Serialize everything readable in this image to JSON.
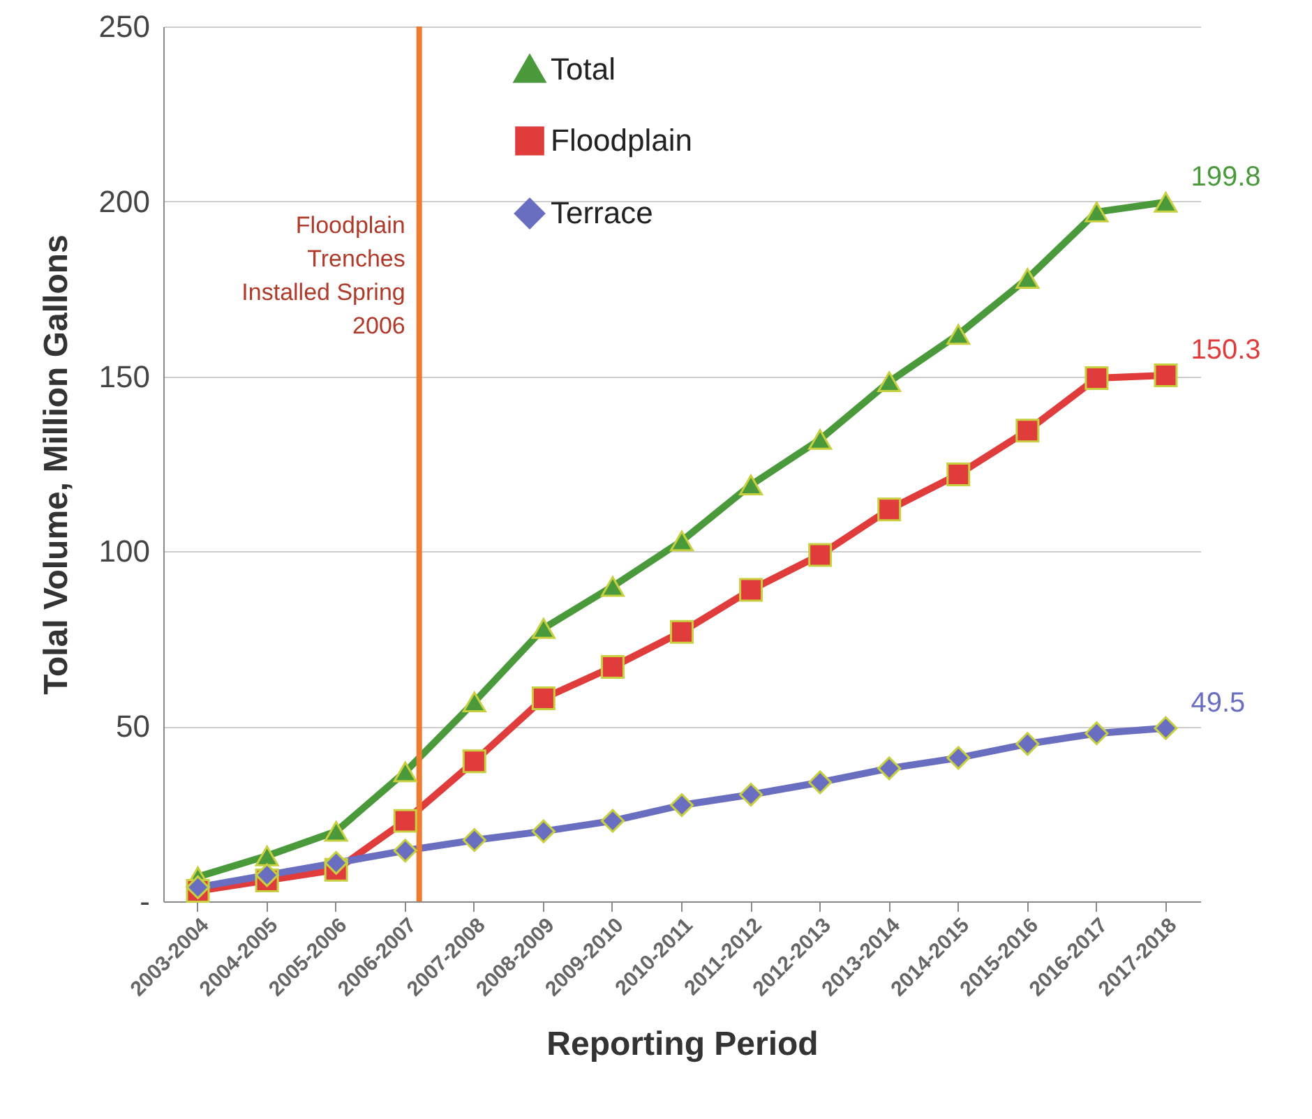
{
  "chart_data": {
    "type": "line",
    "xlabel": "Reporting Period",
    "ylabel": "Tolal Volume, Million Gallons",
    "categories": [
      "2003-2004",
      "2004-2005",
      "2005-2006",
      "2006-2007",
      "2007-2008",
      "2008-2009",
      "2009-2010",
      "2010-2011",
      "2011-2012",
      "2012-2013",
      "2013-2014",
      "2014-2015",
      "2015-2016",
      "2016-2017",
      "2017-2018"
    ],
    "series": [
      {
        "name": "Total",
        "color": "#4a9a3c",
        "marker": "triangle",
        "values": [
          7,
          13,
          20,
          37,
          57,
          78,
          90,
          103,
          119,
          132,
          148.5,
          162,
          178,
          197,
          199.8
        ],
        "value_labels": [
          null,
          null,
          null,
          null,
          null,
          null,
          null,
          null,
          null,
          null,
          null,
          null,
          null,
          null,
          "199.8"
        ]
      },
      {
        "name": "Floodplain",
        "color": "#e03c3c",
        "marker": "square",
        "values": [
          3,
          6,
          9,
          23,
          40,
          58,
          67,
          77,
          89,
          99,
          112,
          122,
          134.5,
          149.5,
          150.3
        ],
        "value_labels": [
          null,
          null,
          null,
          null,
          null,
          null,
          null,
          null,
          null,
          null,
          null,
          null,
          null,
          null,
          "150.3"
        ]
      },
      {
        "name": "Terrace",
        "color": "#6a6ec0",
        "marker": "diamond",
        "values": [
          4,
          7.5,
          11,
          14.5,
          17.5,
          20,
          23,
          27.5,
          30.5,
          34,
          38,
          41,
          45,
          48,
          49.5
        ],
        "value_labels": [
          null,
          null,
          null,
          null,
          null,
          null,
          null,
          null,
          null,
          null,
          null,
          null,
          null,
          null,
          "49.5"
        ]
      }
    ],
    "ylim": [
      0,
      250
    ],
    "yticks": [
      {
        "value": 0,
        "label": "-"
      },
      50,
      100,
      150,
      200,
      250
    ],
    "grid": "y",
    "legend": "top",
    "line_style": "solid",
    "ref_lines": [
      {
        "axis": "x",
        "value": "2006-2007",
        "label": "Floodplain\nTrenches\nInstalled Spring\n2006",
        "color": "#f07a30"
      }
    ]
  }
}
